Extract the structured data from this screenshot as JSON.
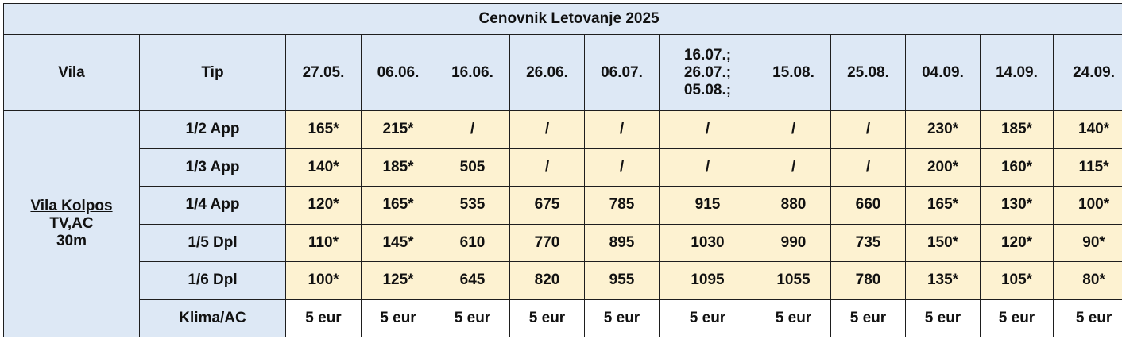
{
  "title": "Cenovnik Letovanje 2025",
  "headers": {
    "vila": "Vila",
    "tip": "Tip",
    "dates": [
      [
        "27.05."
      ],
      [
        "06.06."
      ],
      [
        "16.06."
      ],
      [
        "26.06."
      ],
      [
        "06.07."
      ],
      [
        "16.07.;",
        "26.07.;",
        "05.08.;"
      ],
      [
        "15.08."
      ],
      [
        "25.08."
      ],
      [
        "04.09."
      ],
      [
        "14.09."
      ],
      [
        "24.09."
      ]
    ]
  },
  "vila": {
    "name": "Vila Kolpos",
    "features": "TV,AC",
    "distance": "30m"
  },
  "rows": [
    {
      "type": "1/2 App",
      "prices": [
        "165*",
        "215*",
        "/",
        "/",
        "/",
        "/",
        "/",
        "/",
        "230*",
        "185*",
        "140*"
      ]
    },
    {
      "type": "1/3 App",
      "prices": [
        "140*",
        "185*",
        "505",
        "/",
        "/",
        "/",
        "/",
        "/",
        "200*",
        "160*",
        "115*"
      ]
    },
    {
      "type": "1/4 App",
      "prices": [
        "120*",
        "165*",
        "535",
        "675",
        "785",
        "915",
        "880",
        "660",
        "165*",
        "130*",
        "100*"
      ]
    },
    {
      "type": "1/5 Dpl",
      "prices": [
        "110*",
        "145*",
        "610",
        "770",
        "895",
        "1030",
        "990",
        "735",
        "150*",
        "120*",
        "90*"
      ]
    },
    {
      "type": "1/6 Dpl",
      "prices": [
        "100*",
        "125*",
        "645",
        "820",
        "955",
        "1095",
        "1055",
        "780",
        "135*",
        "105*",
        "80*"
      ]
    },
    {
      "type": "Klima/AC",
      "prices": [
        "5 eur",
        "5 eur",
        "5 eur",
        "5 eur",
        "5 eur",
        "5 eur",
        "5 eur",
        "5 eur",
        "5 eur",
        "5 eur",
        "5 eur"
      ]
    }
  ],
  "colors": {
    "header_bg": "#dde8f5",
    "price_bg": "#fdf2d1",
    "extra_bg": "#ffffff",
    "border": "#1e1e1e"
  }
}
